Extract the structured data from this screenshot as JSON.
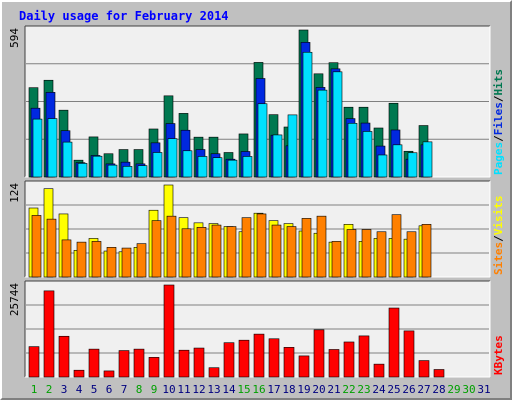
{
  "title": "Daily usage for February 2014",
  "chart_data": [
    {
      "type": "bar",
      "name": "hits-files-pages",
      "categories": [
        "1",
        "2",
        "3",
        "4",
        "5",
        "6",
        "7",
        "8",
        "9",
        "10",
        "11",
        "12",
        "13",
        "14",
        "15",
        "16",
        "17",
        "18",
        "19",
        "20",
        "21",
        "22",
        "23",
        "24",
        "25",
        "26",
        "27",
        "28",
        "29",
        "30",
        "31"
      ],
      "ymax_label": "594",
      "ylim": [
        0,
        594
      ],
      "right_label": [
        "Pages",
        "Files",
        "Hits"
      ],
      "series": [
        {
          "name": "Hits",
          "values": [
            361,
            391,
            270,
            68,
            162,
            94,
            111,
            111,
            194,
            328,
            257,
            161,
            161,
            99,
            174,
            463,
            252,
            202,
            594,
            417,
            462,
            282,
            282,
            198,
            298,
            104,
            208,
            0,
            0,
            0,
            0
          ]
        },
        {
          "name": "Files",
          "values": [
            278,
            342,
            187,
            58,
            87,
            53,
            60,
            53,
            138,
            216,
            189,
            111,
            94,
            72,
            103,
            398,
            169,
            126,
            544,
            362,
            437,
            236,
            218,
            125,
            190,
            72,
            130,
            0,
            0,
            0,
            0
          ]
        },
        {
          "name": "Pages",
          "values": [
            234,
            236,
            141,
            55,
            84,
            48,
            43,
            46,
            99,
            155,
            106,
            83,
            78,
            68,
            83,
            296,
            170,
            251,
            504,
            351,
            425,
            217,
            184,
            89,
            130,
            98,
            142,
            0,
            0,
            0,
            0
          ]
        }
      ],
      "colors": {
        "Hits": "#007850",
        "Files": "#0028e0",
        "Pages": "#00e0ff"
      }
    },
    {
      "type": "bar",
      "name": "visits-sites",
      "categories": [
        "1",
        "2",
        "3",
        "4",
        "5",
        "6",
        "7",
        "8",
        "9",
        "10",
        "11",
        "12",
        "13",
        "14",
        "15",
        "16",
        "17",
        "18",
        "19",
        "20",
        "21",
        "22",
        "23",
        "24",
        "25",
        "26",
        "27",
        "28",
        "29",
        "30",
        "31"
      ],
      "ymax_label": "124",
      "ylim": [
        0,
        124
      ],
      "right_label": [
        "Sites",
        "Visits"
      ],
      "series": [
        {
          "name": "Visits",
          "values": [
            93,
            119,
            85,
            36,
            52,
            35,
            34,
            40,
            90,
            124,
            80,
            73,
            72,
            68,
            61,
            86,
            76,
            72,
            62,
            59,
            47,
            71,
            48,
            52,
            52,
            51,
            69,
            0,
            0,
            0,
            0
          ]
        },
        {
          "name": "Sites",
          "values": [
            83,
            78,
            50,
            47,
            48,
            40,
            39,
            45,
            76,
            82,
            65,
            67,
            70,
            68,
            80,
            85,
            70,
            68,
            79,
            82,
            48,
            64,
            64,
            61,
            84,
            61,
            71,
            0,
            0,
            0,
            0
          ]
        }
      ],
      "colors": {
        "Visits": "#ffff00",
        "Sites": "#ff8000"
      }
    },
    {
      "type": "bar",
      "name": "kbytes",
      "categories": [
        "1",
        "2",
        "3",
        "4",
        "5",
        "6",
        "7",
        "8",
        "9",
        "10",
        "11",
        "12",
        "13",
        "14",
        "15",
        "16",
        "17",
        "18",
        "19",
        "20",
        "21",
        "22",
        "23",
        "24",
        "25",
        "26",
        "27",
        "28",
        "29",
        "30",
        "31"
      ],
      "ymax_label": "25744",
      "ylim": [
        0,
        25744
      ],
      "right_label": [
        "KBytes"
      ],
      "series": [
        {
          "name": "KBytes",
          "values": [
            8500,
            24100,
            11400,
            1900,
            7800,
            1700,
            7400,
            7800,
            5500,
            25744,
            7500,
            8100,
            2600,
            9600,
            10300,
            12000,
            10700,
            8300,
            5900,
            13200,
            7700,
            9800,
            11500,
            3600,
            19300,
            12900,
            4600,
            2100,
            0,
            0,
            0
          ]
        }
      ],
      "colors": {
        "KBytes": "#ff0000"
      }
    }
  ],
  "x_labels": [
    {
      "day": "1",
      "weekend": true
    },
    {
      "day": "2",
      "weekend": true
    },
    {
      "day": "3",
      "weekend": false
    },
    {
      "day": "4",
      "weekend": false
    },
    {
      "day": "5",
      "weekend": false
    },
    {
      "day": "6",
      "weekend": false
    },
    {
      "day": "7",
      "weekend": false
    },
    {
      "day": "8",
      "weekend": true
    },
    {
      "day": "9",
      "weekend": true
    },
    {
      "day": "10",
      "weekend": false
    },
    {
      "day": "11",
      "weekend": false
    },
    {
      "day": "12",
      "weekend": false
    },
    {
      "day": "13",
      "weekend": false
    },
    {
      "day": "14",
      "weekend": false
    },
    {
      "day": "15",
      "weekend": true
    },
    {
      "day": "16",
      "weekend": true
    },
    {
      "day": "17",
      "weekend": false
    },
    {
      "day": "18",
      "weekend": false
    },
    {
      "day": "19",
      "weekend": false
    },
    {
      "day": "20",
      "weekend": false
    },
    {
      "day": "21",
      "weekend": false
    },
    {
      "day": "22",
      "weekend": true
    },
    {
      "day": "23",
      "weekend": true
    },
    {
      "day": "24",
      "weekend": false
    },
    {
      "day": "25",
      "weekend": false
    },
    {
      "day": "26",
      "weekend": false
    },
    {
      "day": "27",
      "weekend": false
    },
    {
      "day": "28",
      "weekend": false
    },
    {
      "day": "29",
      "weekend": true
    },
    {
      "day": "30",
      "weekend": true
    },
    {
      "day": "31",
      "weekend": false
    }
  ],
  "colors": {
    "background": "#c0c0c0",
    "plot_bg": "#f0f0f0",
    "title": "#0000ff",
    "axis_text": "#000000",
    "weekday_text": "#000080",
    "weekend_text": "#00a000",
    "gridline": "#808080",
    "separator": "#404040",
    "bar_outline": "#000000"
  }
}
